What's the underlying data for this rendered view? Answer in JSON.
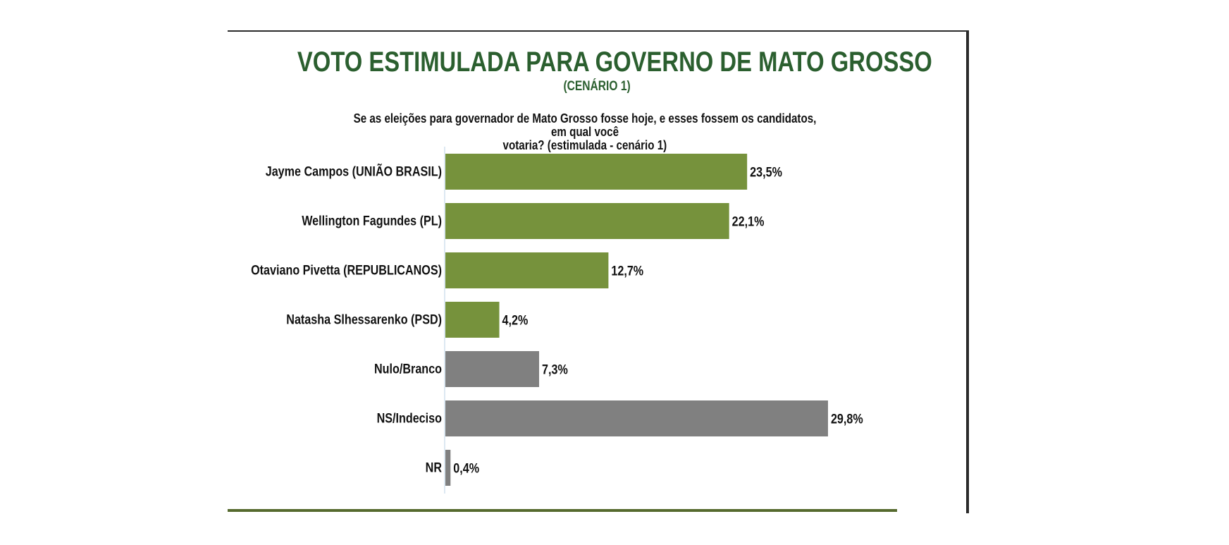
{
  "chart_data": {
    "type": "bar",
    "orientation": "horizontal",
    "title": "VOTO ESTIMULADA PARA GOVERNO DE MATO GROSSO",
    "subtitle": "(CENÁRIO 1)",
    "question_line1": "Se as eleições para governador de Mato Grosso fosse hoje, e esses fossem os candidatos, em qual você",
    "question_line2": "votaria? (estimulada - cenário 1)",
    "xlabel": "",
    "ylabel": "",
    "unit": "%",
    "xlim": [
      0,
      30
    ],
    "grid": false,
    "legend": "none",
    "categories": [
      "Jayme Campos (UNIÃO BRASIL)",
      "Wellington Fagundes (PL)",
      "Otaviano Pivetta (REPUBLICANOS)",
      "Natasha Slhessarenko (PSD)",
      "Nulo/Branco",
      "NS/Indeciso",
      "NR"
    ],
    "values": [
      23.5,
      22.1,
      12.7,
      4.2,
      7.3,
      29.8,
      0.4
    ],
    "data_labels": [
      "23,5%",
      "22,1%",
      "12,7%",
      "4,2%",
      "7,3%",
      "29,8%",
      "0,4%"
    ],
    "bar_groups": [
      "candidate",
      "candidate",
      "candidate",
      "candidate",
      "other",
      "other",
      "other"
    ],
    "colors": {
      "candidate": "#76923c",
      "other": "#808080",
      "title": "#2b5f2f",
      "axis": "#dce8f2"
    }
  }
}
